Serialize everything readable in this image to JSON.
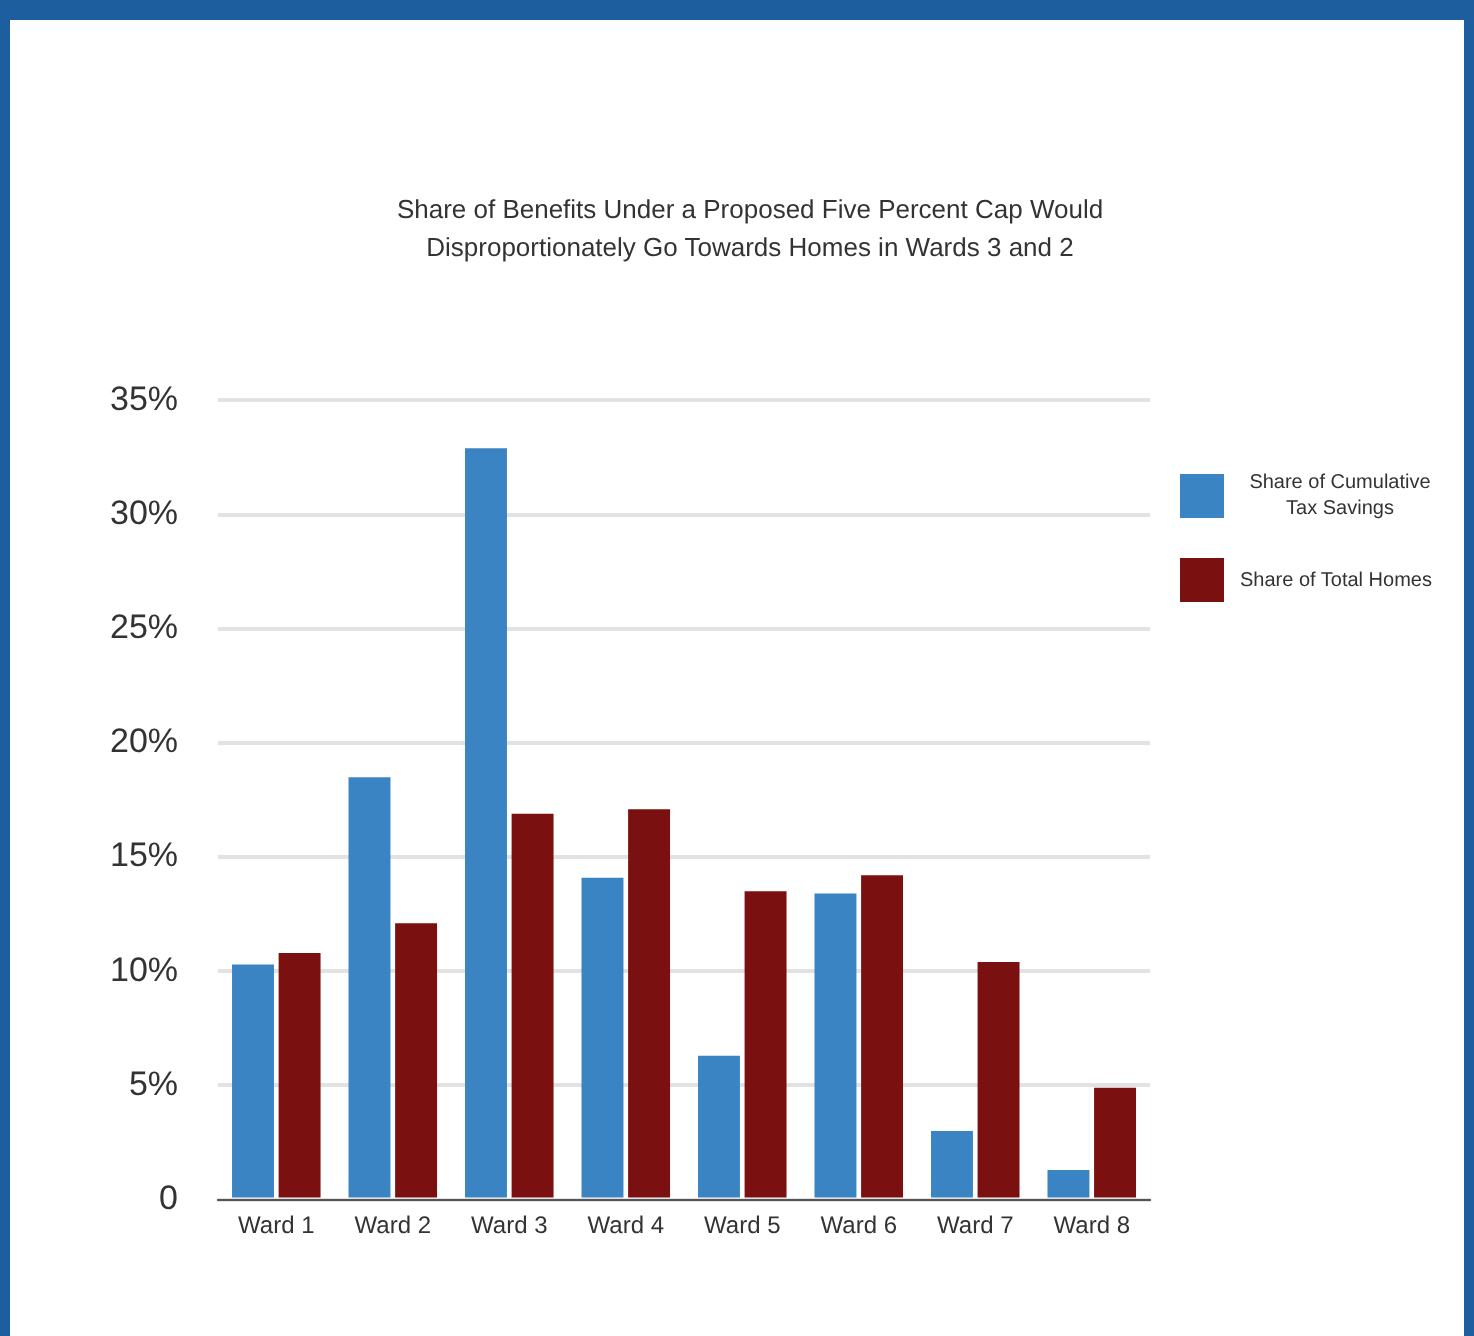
{
  "chart_data": {
    "type": "bar",
    "title": "Share of Benefits Under a Proposed Five Percent Cap Would Disproportionately Go Towards Homes in Wards 3 and 2",
    "categories": [
      "Ward 1",
      "Ward 2",
      "Ward 3",
      "Ward 4",
      "Ward 5",
      "Ward 6",
      "Ward 7",
      "Ward 8"
    ],
    "series": [
      {
        "name": "Share of Cumulative Tax Savings",
        "color": "#3a84c4",
        "values": [
          10.3,
          18.5,
          32.9,
          14.1,
          6.3,
          13.4,
          3.0,
          1.3
        ]
      },
      {
        "name": "Share of Total Homes",
        "color": "#7a1010",
        "values": [
          10.8,
          12.1,
          16.9,
          17.1,
          13.5,
          14.2,
          10.4,
          4.9
        ]
      }
    ],
    "ylim": [
      0,
      35
    ],
    "yticks": [
      0,
      {
        "value": 5,
        "label": "5%"
      },
      {
        "value": 10,
        "label": "10%"
      },
      {
        "value": 15,
        "label": "15%"
      },
      {
        "value": 20,
        "label": "20%"
      },
      {
        "value": 25,
        "label": "25%"
      },
      {
        "value": 30,
        "label": "30%"
      },
      {
        "value": 35,
        "label": "35%"
      }
    ],
    "grid": "y",
    "legend": "right"
  }
}
